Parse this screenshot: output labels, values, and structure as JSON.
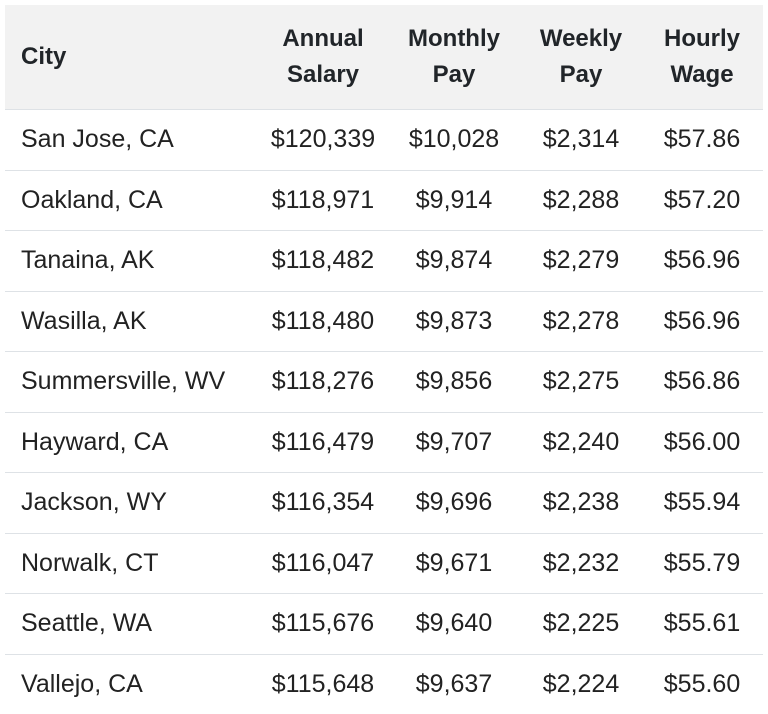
{
  "table": {
    "headers": [
      {
        "line1": "City",
        "line2": ""
      },
      {
        "line1": "Annual",
        "line2": "Salary"
      },
      {
        "line1": "Monthly",
        "line2": "Pay"
      },
      {
        "line1": "Weekly",
        "line2": "Pay"
      },
      {
        "line1": "Hourly",
        "line2": "Wage"
      }
    ],
    "rows": [
      [
        "San Jose, CA",
        "$120,339",
        "$10,028",
        "$2,314",
        "$57.86"
      ],
      [
        "Oakland, CA",
        "$118,971",
        "$9,914",
        "$2,288",
        "$57.20"
      ],
      [
        "Tanaina, AK",
        "$118,482",
        "$9,874",
        "$2,279",
        "$56.96"
      ],
      [
        "Wasilla, AK",
        "$118,480",
        "$9,873",
        "$2,278",
        "$56.96"
      ],
      [
        "Summersville, WV",
        "$118,276",
        "$9,856",
        "$2,275",
        "$56.86"
      ],
      [
        "Hayward, CA",
        "$116,479",
        "$9,707",
        "$2,240",
        "$56.00"
      ],
      [
        "Jackson, WY",
        "$116,354",
        "$9,696",
        "$2,238",
        "$55.94"
      ],
      [
        "Norwalk, CT",
        "$116,047",
        "$9,671",
        "$2,232",
        "$55.79"
      ],
      [
        "Seattle, WA",
        "$115,676",
        "$9,640",
        "$2,225",
        "$55.61"
      ],
      [
        "Vallejo, CA",
        "$115,648",
        "$9,637",
        "$2,224",
        "$55.60"
      ]
    ]
  }
}
